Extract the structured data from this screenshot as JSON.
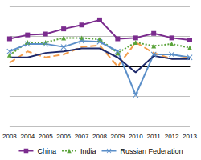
{
  "chart_data": {
    "type": "line",
    "categories": [
      "2003",
      "2004",
      "2005",
      "2006",
      "2007",
      "2008",
      "2009",
      "2010",
      "2011",
      "2012",
      "2013"
    ],
    "series": [
      {
        "name": "China",
        "color": "#7b2c8e",
        "marker": "square",
        "line_style": "solid",
        "values": [
          4.6,
          5.25,
          5.4,
          6.25,
          6.9,
          7.75,
          4.6,
          4.75,
          5.5,
          4.75,
          4.4
        ]
      },
      {
        "name": "India",
        "color": "#5aa33a",
        "marker": "triangle",
        "line_style": "dotted",
        "values": [
          1.9,
          4,
          4,
          4.75,
          4.75,
          4.5,
          2.25,
          4,
          3.4,
          3.75,
          3.1
        ]
      },
      {
        "name": "Russian Federation",
        "color": "#5b8fc9",
        "marker": "x",
        "line_style": "solid",
        "values": [
          2.5,
          3.75,
          3.75,
          3.25,
          4.25,
          4.1,
          2.5,
          -4.75,
          2,
          2,
          1.5
        ]
      },
      {
        "color": "#f39c4a",
        "marker": "none",
        "line_style": "dashed",
        "values": [
          0.6,
          2.5,
          1.5,
          2,
          3.25,
          3.5,
          0,
          4,
          2.25,
          1.25,
          1.5
        ]
      },
      {
        "color": "#1f2a6b",
        "marker": "none",
        "line_style": "solid",
        "values": [
          1.5,
          1.5,
          2.25,
          2.5,
          3,
          3,
          1.5,
          -1,
          1.75,
          1.25,
          1.25
        ]
      }
    ],
    "ylim": [
      -10,
      10
    ],
    "yticks": [
      -10,
      -5,
      0,
      5,
      10
    ],
    "grid": true,
    "legend": "bottom",
    "tick_labels": "x"
  }
}
